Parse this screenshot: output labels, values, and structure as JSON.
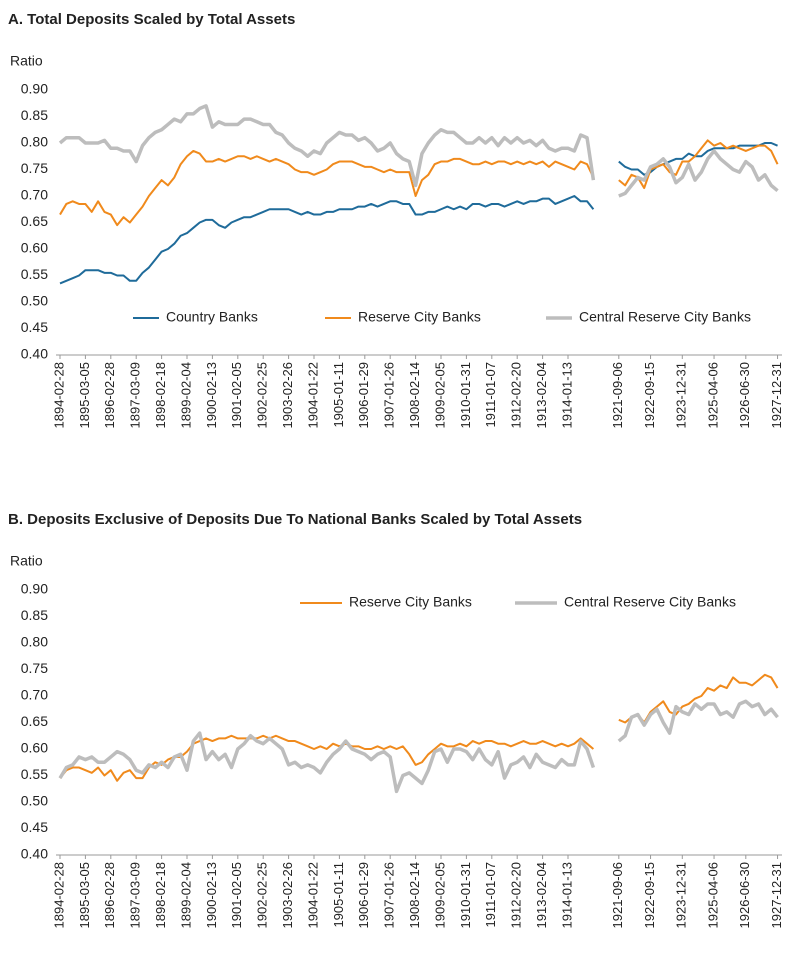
{
  "chart_data": [
    {
      "type": "line",
      "title": "A. Total Deposits Scaled by Total Assets",
      "y_label": "Ratio",
      "categories": [
        "1894-02-28",
        null,
        null,
        null,
        "1895-03-05",
        null,
        null,
        null,
        "1896-02-28",
        null,
        null,
        null,
        "1897-03-09",
        null,
        null,
        null,
        "1898-02-18",
        null,
        null,
        null,
        "1899-02-04",
        null,
        null,
        null,
        "1900-02-13",
        null,
        null,
        null,
        "1901-02-05",
        null,
        null,
        null,
        "1902-02-25",
        null,
        null,
        null,
        "1903-02-26",
        null,
        null,
        null,
        "1904-01-22",
        null,
        null,
        null,
        "1905-01-11",
        null,
        null,
        null,
        "1906-01-29",
        null,
        null,
        null,
        "1907-01-26",
        null,
        null,
        null,
        "1908-02-14",
        null,
        null,
        null,
        "1909-02-05",
        null,
        null,
        null,
        "1910-01-31",
        null,
        null,
        null,
        "1911-01-07",
        null,
        null,
        null,
        "1912-02-20",
        null,
        null,
        null,
        "1913-02-04",
        null,
        null,
        null,
        "1914-01-13",
        null,
        null,
        null,
        null,
        null,
        null,
        null,
        "1921-09-06",
        null,
        null,
        null,
        null,
        "1922-09-15",
        null,
        null,
        null,
        null,
        "1923-12-31",
        null,
        null,
        null,
        null,
        "1925-04-06",
        null,
        null,
        null,
        null,
        "1926-06-30",
        null,
        null,
        null,
        null,
        "1927-12-31"
      ],
      "series": [
        {
          "name": "Country Banks",
          "color": "#1f6b9a",
          "values": [
            0.535,
            0.54,
            0.545,
            0.55,
            0.56,
            0.56,
            0.56,
            0.555,
            0.555,
            0.55,
            0.55,
            0.54,
            0.54,
            0.555,
            0.565,
            0.58,
            0.595,
            0.6,
            0.61,
            0.625,
            0.63,
            0.64,
            0.65,
            0.655,
            0.655,
            0.645,
            0.64,
            0.65,
            0.655,
            0.66,
            0.66,
            0.665,
            0.67,
            0.675,
            0.675,
            0.675,
            0.675,
            0.67,
            0.665,
            0.67,
            0.665,
            0.665,
            0.67,
            0.67,
            0.675,
            0.675,
            0.675,
            0.68,
            0.68,
            0.685,
            0.68,
            0.685,
            0.69,
            0.69,
            0.685,
            0.685,
            0.665,
            0.665,
            0.67,
            0.67,
            0.675,
            0.68,
            0.675,
            0.68,
            0.675,
            0.685,
            0.685,
            0.68,
            0.685,
            0.685,
            0.68,
            0.685,
            0.69,
            0.685,
            0.69,
            0.69,
            0.695,
            0.695,
            0.685,
            0.69,
            0.695,
            0.7,
            0.69,
            0.69,
            0.675,
            null,
            null,
            null,
            0.765,
            0.755,
            0.75,
            0.75,
            0.74,
            0.745,
            0.755,
            0.76,
            0.765,
            0.77,
            0.77,
            0.78,
            0.775,
            0.775,
            0.785,
            0.79,
            0.79,
            0.79,
            0.79,
            0.795,
            0.795,
            0.795,
            0.795,
            0.8,
            0.8,
            0.795
          ]
        },
        {
          "name": "Reserve City Banks",
          "color": "#f08a1c",
          "values": [
            0.665,
            0.685,
            0.69,
            0.685,
            0.685,
            0.67,
            0.69,
            0.67,
            0.665,
            0.645,
            0.66,
            0.65,
            0.665,
            0.68,
            0.7,
            0.715,
            0.73,
            0.72,
            0.735,
            0.76,
            0.775,
            0.785,
            0.78,
            0.765,
            0.765,
            0.77,
            0.765,
            0.77,
            0.775,
            0.775,
            0.77,
            0.775,
            0.77,
            0.765,
            0.77,
            0.765,
            0.76,
            0.75,
            0.745,
            0.745,
            0.74,
            0.745,
            0.75,
            0.76,
            0.765,
            0.765,
            0.765,
            0.76,
            0.755,
            0.755,
            0.75,
            0.745,
            0.75,
            0.745,
            0.745,
            0.745,
            0.7,
            0.73,
            0.74,
            0.76,
            0.765,
            0.765,
            0.77,
            0.77,
            0.765,
            0.76,
            0.76,
            0.765,
            0.76,
            0.765,
            0.765,
            0.76,
            0.765,
            0.76,
            0.765,
            0.76,
            0.765,
            0.755,
            0.765,
            0.76,
            0.755,
            0.75,
            0.765,
            0.76,
            0.735,
            null,
            null,
            null,
            0.73,
            0.72,
            0.74,
            0.735,
            0.715,
            0.75,
            0.755,
            0.76,
            0.745,
            0.74,
            0.765,
            0.765,
            0.775,
            0.79,
            0.805,
            0.795,
            0.8,
            0.79,
            0.795,
            0.79,
            0.785,
            0.79,
            0.795,
            0.795,
            0.785,
            0.76
          ]
        },
        {
          "name": "Central Reserve City Banks",
          "color": "#bdbdbd",
          "values": [
            0.8,
            0.81,
            0.81,
            0.81,
            0.8,
            0.8,
            0.8,
            0.805,
            0.79,
            0.79,
            0.785,
            0.785,
            0.765,
            0.795,
            0.81,
            0.82,
            0.825,
            0.835,
            0.845,
            0.84,
            0.855,
            0.855,
            0.865,
            0.87,
            0.83,
            0.84,
            0.835,
            0.835,
            0.835,
            0.845,
            0.845,
            0.84,
            0.835,
            0.835,
            0.82,
            0.815,
            0.8,
            0.79,
            0.785,
            0.775,
            0.785,
            0.78,
            0.8,
            0.81,
            0.82,
            0.815,
            0.815,
            0.805,
            0.81,
            0.8,
            0.785,
            0.79,
            0.8,
            0.78,
            0.77,
            0.765,
            0.72,
            0.78,
            0.8,
            0.815,
            0.825,
            0.82,
            0.82,
            0.81,
            0.8,
            0.8,
            0.81,
            0.8,
            0.81,
            0.795,
            0.81,
            0.8,
            0.81,
            0.8,
            0.805,
            0.795,
            0.805,
            0.79,
            0.785,
            0.79,
            0.79,
            0.785,
            0.815,
            0.81,
            0.73,
            null,
            null,
            null,
            0.7,
            0.705,
            0.72,
            0.735,
            0.73,
            0.755,
            0.76,
            0.77,
            0.755,
            0.725,
            0.735,
            0.76,
            0.73,
            0.745,
            0.77,
            0.785,
            0.77,
            0.76,
            0.75,
            0.745,
            0.765,
            0.755,
            0.73,
            0.74,
            0.72,
            0.71
          ]
        }
      ],
      "ylim": [
        0.4,
        0.9
      ],
      "yticks": [
        {
          "value": 0.4,
          "label": "0.40"
        },
        0.45,
        {
          "value": 0.5,
          "label": "0.50"
        },
        0.55,
        {
          "value": 0.6,
          "label": "0.60"
        },
        0.65,
        {
          "value": 0.7,
          "label": "0.70"
        },
        0.75,
        {
          "value": 0.8,
          "label": "0.80"
        },
        0.85,
        {
          "value": 0.9,
          "label": "0.90"
        }
      ],
      "legend": "bottom"
    },
    {
      "type": "line",
      "title": "B. Deposits Exclusive of Deposits Due To National Banks Scaled by Total Assets",
      "y_label": "Ratio",
      "categories": [
        "1894-02-28",
        null,
        null,
        null,
        "1895-03-05",
        null,
        null,
        null,
        "1896-02-28",
        null,
        null,
        null,
        "1897-03-09",
        null,
        null,
        null,
        "1898-02-18",
        null,
        null,
        null,
        "1899-02-04",
        null,
        null,
        null,
        "1900-02-13",
        null,
        null,
        null,
        "1901-02-05",
        null,
        null,
        null,
        "1902-02-25",
        null,
        null,
        null,
        "1903-02-26",
        null,
        null,
        null,
        "1904-01-22",
        null,
        null,
        null,
        "1905-01-11",
        null,
        null,
        null,
        "1906-01-29",
        null,
        null,
        null,
        "1907-01-26",
        null,
        null,
        null,
        "1908-02-14",
        null,
        null,
        null,
        "1909-02-05",
        null,
        null,
        null,
        "1910-01-31",
        null,
        null,
        null,
        "1911-01-07",
        null,
        null,
        null,
        "1912-02-20",
        null,
        null,
        null,
        "1913-02-04",
        null,
        null,
        null,
        "1914-01-13",
        null,
        null,
        null,
        null,
        null,
        null,
        null,
        "1921-09-06",
        null,
        null,
        null,
        null,
        "1922-09-15",
        null,
        null,
        null,
        null,
        "1923-12-31",
        null,
        null,
        null,
        null,
        "1925-04-06",
        null,
        null,
        null,
        null,
        "1926-06-30",
        null,
        null,
        null,
        null,
        "1927-12-31"
      ],
      "series": [
        {
          "name": "Reserve City Banks",
          "color": "#f08a1c",
          "values": [
            0.545,
            0.56,
            0.565,
            0.565,
            0.56,
            0.555,
            0.565,
            0.55,
            0.56,
            0.54,
            0.555,
            0.56,
            0.545,
            0.545,
            0.565,
            0.575,
            0.57,
            0.58,
            0.585,
            0.585,
            0.595,
            0.61,
            0.615,
            0.62,
            0.615,
            0.62,
            0.62,
            0.625,
            0.62,
            0.62,
            0.62,
            0.62,
            0.625,
            0.62,
            0.625,
            0.62,
            0.615,
            0.615,
            0.61,
            0.605,
            0.6,
            0.605,
            0.6,
            0.61,
            0.605,
            0.61,
            0.605,
            0.605,
            0.6,
            0.6,
            0.605,
            0.6,
            0.605,
            0.6,
            0.605,
            0.59,
            0.57,
            0.575,
            0.59,
            0.6,
            0.61,
            0.605,
            0.605,
            0.61,
            0.605,
            0.615,
            0.61,
            0.615,
            0.615,
            0.61,
            0.61,
            0.605,
            0.61,
            0.615,
            0.61,
            0.61,
            0.615,
            0.61,
            0.605,
            0.61,
            0.605,
            0.61,
            0.62,
            0.61,
            0.6,
            null,
            null,
            null,
            0.655,
            0.65,
            0.66,
            0.665,
            0.65,
            0.67,
            0.68,
            0.69,
            0.67,
            0.665,
            0.68,
            0.685,
            0.695,
            0.7,
            0.715,
            0.71,
            0.72,
            0.715,
            0.735,
            0.725,
            0.725,
            0.72,
            0.73,
            0.74,
            0.735,
            0.715
          ]
        },
        {
          "name": "Central Reserve City Banks",
          "color": "#bdbdbd",
          "values": [
            0.545,
            0.565,
            0.57,
            0.585,
            0.58,
            0.585,
            0.575,
            0.575,
            0.585,
            0.595,
            0.59,
            0.58,
            0.56,
            0.555,
            0.57,
            0.565,
            0.575,
            0.565,
            0.585,
            0.59,
            0.56,
            0.615,
            0.63,
            0.58,
            0.595,
            0.58,
            0.59,
            0.565,
            0.6,
            0.61,
            0.625,
            0.615,
            0.61,
            0.62,
            0.61,
            0.6,
            0.57,
            0.575,
            0.565,
            0.57,
            0.565,
            0.555,
            0.575,
            0.59,
            0.6,
            0.615,
            0.6,
            0.595,
            0.59,
            0.58,
            0.59,
            0.595,
            0.585,
            0.52,
            0.55,
            0.555,
            0.545,
            0.535,
            0.56,
            0.595,
            0.6,
            0.575,
            0.6,
            0.6,
            0.595,
            0.58,
            0.6,
            0.58,
            0.57,
            0.595,
            0.545,
            0.57,
            0.575,
            0.585,
            0.565,
            0.59,
            0.575,
            0.57,
            0.565,
            0.58,
            0.57,
            0.57,
            0.615,
            0.6,
            0.565,
            null,
            null,
            null,
            0.615,
            0.625,
            0.66,
            0.665,
            0.645,
            0.665,
            0.675,
            0.65,
            0.63,
            0.68,
            0.67,
            0.665,
            0.685,
            0.675,
            0.685,
            0.685,
            0.665,
            0.67,
            0.66,
            0.685,
            0.69,
            0.68,
            0.685,
            0.665,
            0.675,
            0.66
          ]
        }
      ],
      "ylim": [
        0.4,
        0.9
      ],
      "yticks": [
        {
          "value": 0.4,
          "label": "0.40"
        },
        0.45,
        {
          "value": 0.5,
          "label": "0.50"
        },
        0.55,
        {
          "value": 0.6,
          "label": "0.60"
        },
        0.65,
        {
          "value": 0.7,
          "label": "0.70"
        },
        0.75,
        {
          "value": 0.8,
          "label": "0.80"
        },
        0.85,
        {
          "value": 0.9,
          "label": "0.90"
        }
      ],
      "legend": "top-right"
    }
  ]
}
